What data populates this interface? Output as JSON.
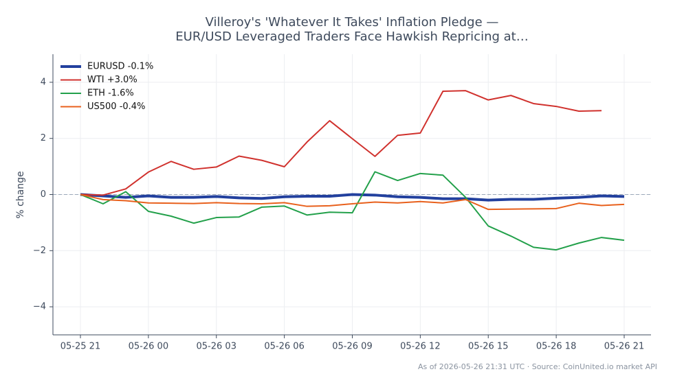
{
  "chart_data": {
    "type": "line",
    "title": [
      "Villeroy's 'Whatever It Takes' Inflation Pledge —",
      "EUR/USD Leveraged Traders Face Hawkish Repricing at…"
    ],
    "ylabel": "% change",
    "footer": "As of 2026-05-26 21:31 UTC · Source: CoinUnited.io market API",
    "x": [
      "05-25 21",
      "05-25 22",
      "05-25 23",
      "05-26 00",
      "05-26 01",
      "05-26 02",
      "05-26 03",
      "05-26 04",
      "05-26 05",
      "05-26 06",
      "05-26 07",
      "05-26 08",
      "05-26 09",
      "05-26 10",
      "05-26 11",
      "05-26 12",
      "05-26 13",
      "05-26 14",
      "05-26 15",
      "05-26 16",
      "05-26 17",
      "05-26 18",
      "05-26 19",
      "05-26 20",
      "05-26 21"
    ],
    "xticks": [
      "05-25 21",
      "05-26 00",
      "05-26 03",
      "05-26 06",
      "05-26 09",
      "05-26 12",
      "05-26 15",
      "05-26 18",
      "05-26 21"
    ],
    "ylim": [
      -5,
      5
    ],
    "yticks": [
      {
        "value": -4,
        "label": "−4"
      },
      {
        "value": -2,
        "label": "−2"
      },
      0,
      2,
      4
    ],
    "grid": true,
    "legend": "upper left",
    "series": [
      {
        "name": "EURUSD -0.1%",
        "color": "#22409e",
        "linewidth": 4,
        "values": [
          0,
          -0.05,
          -0.1,
          -0.05,
          -0.1,
          -0.1,
          -0.07,
          -0.12,
          -0.14,
          -0.08,
          -0.06,
          -0.06,
          0,
          -0.02,
          -0.08,
          -0.1,
          -0.15,
          -0.15,
          -0.2,
          -0.17,
          -0.17,
          -0.13,
          -0.1,
          -0.05,
          -0.07
        ]
      },
      {
        "name": "WTI +3.0%",
        "color": "#d0312d",
        "linewidth": 2,
        "values": [
          0,
          -0.02,
          0.2,
          0.8,
          1.18,
          0.9,
          0.98,
          1.37,
          1.22,
          0.99,
          1.87,
          2.63,
          1.99,
          1.36,
          2.11,
          2.19,
          3.68,
          3.7,
          3.37,
          3.53,
          3.24,
          3.14,
          2.97,
          2.99,
          null
        ]
      },
      {
        "name": "ETH -1.6%",
        "color": "#22a04a",
        "linewidth": 2,
        "values": [
          0,
          -0.33,
          0.1,
          -0.6,
          -0.77,
          -1.02,
          -0.82,
          -0.8,
          -0.45,
          -0.41,
          -0.73,
          -0.63,
          -0.65,
          0.81,
          0.5,
          0.75,
          0.69,
          -0.1,
          -1.12,
          -1.48,
          -1.88,
          -1.97,
          -1.73,
          -1.53,
          -1.63
        ]
      },
      {
        "name": "US500 -0.4%",
        "color": "#e8601c",
        "linewidth": 2,
        "values": [
          0,
          -0.18,
          -0.22,
          -0.3,
          -0.31,
          -0.32,
          -0.29,
          -0.32,
          -0.33,
          -0.29,
          -0.42,
          -0.4,
          -0.33,
          -0.27,
          -0.3,
          -0.25,
          -0.3,
          -0.18,
          -0.53,
          -0.52,
          -0.51,
          -0.5,
          -0.31,
          -0.39,
          -0.35
        ]
      }
    ]
  }
}
